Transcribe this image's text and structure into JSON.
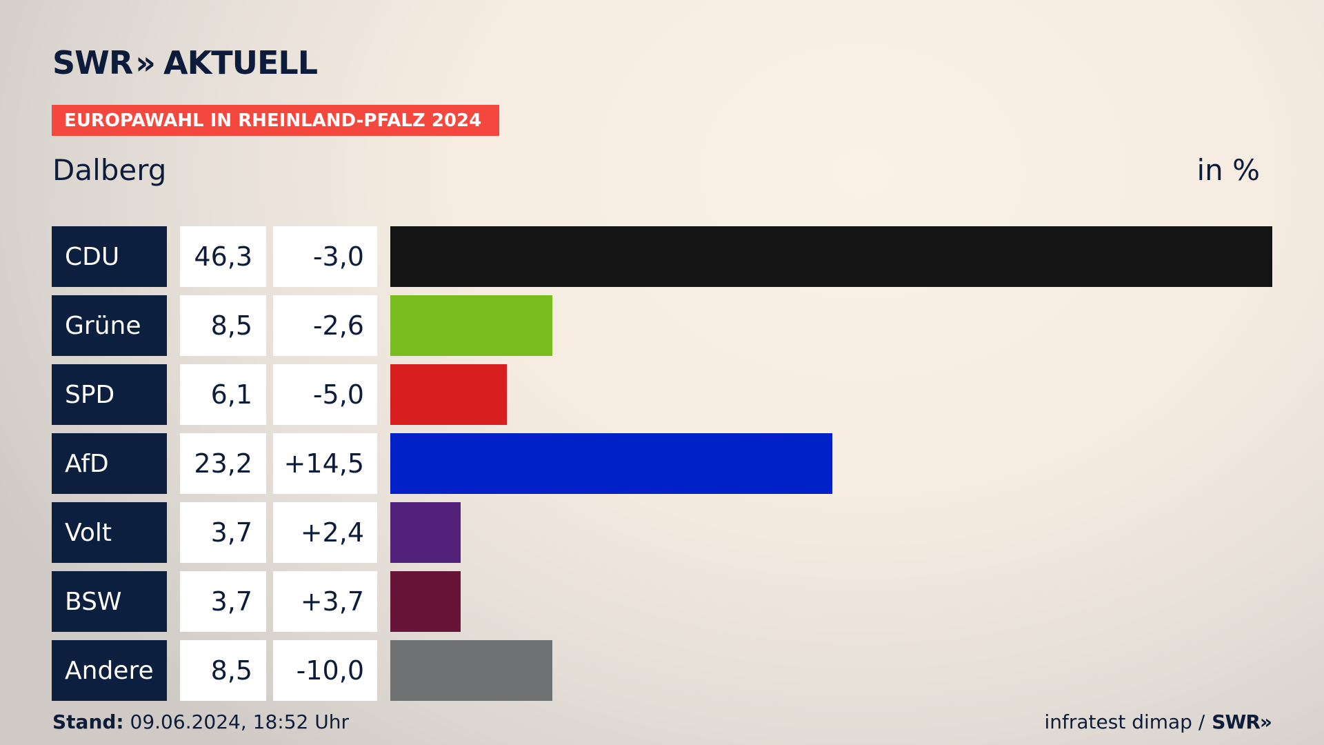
{
  "header": {
    "logo_left": "SWR",
    "logo_chevrons": "»",
    "logo_right": "AKTUELL",
    "badge": "EUROPAWAHL IN RHEINLAND-PFALZ 2024",
    "region": "Dalberg",
    "unit": "in %"
  },
  "footer": {
    "stand_label": "Stand:",
    "stand_value": "09.06.2024, 18:52 Uhr",
    "source": "infratest dimap /",
    "source_logo": "SWR»"
  },
  "chart_data": {
    "type": "bar",
    "orientation": "horizontal",
    "categories": [
      "CDU",
      "Grüne",
      "SPD",
      "AfD",
      "Volt",
      "BSW",
      "Andere"
    ],
    "values": [
      46.3,
      8.5,
      6.1,
      23.2,
      3.7,
      3.7,
      8.5
    ],
    "value_labels": [
      "46,3",
      "8,5",
      "6,1",
      "23,2",
      "3,7",
      "3,7",
      "8,5"
    ],
    "diff_labels": [
      "-3,0",
      "-2,6",
      "-5,0",
      "+14,5",
      "+2,4",
      "+3,7",
      "-10,0"
    ],
    "colors": [
      "#141414",
      "#78bc1e",
      "#d71f1f",
      "#0021c8",
      "#52217a",
      "#661538",
      "#707173"
    ],
    "xlim": [
      0,
      46.3
    ]
  }
}
